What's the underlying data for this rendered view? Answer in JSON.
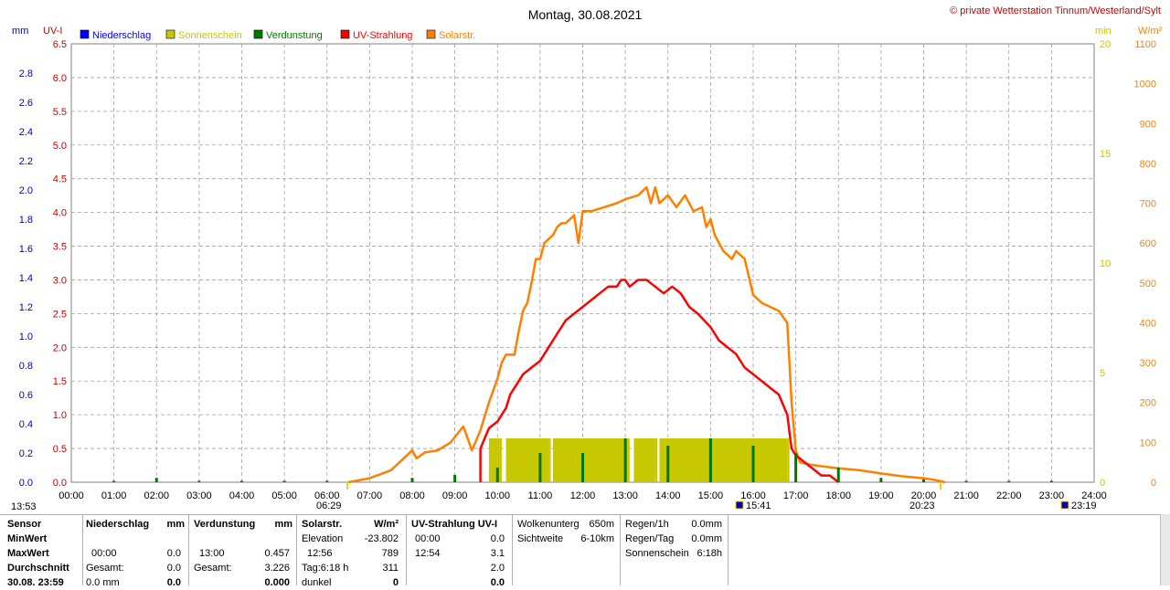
{
  "title": "Montag, 30.08.2021",
  "copyright": "© private Wetterstation Tinnum/Westerland/Sylt",
  "colors": {
    "niederschlag": "#0000ff",
    "sonnenschein": "#c8c800",
    "verdunstung": "#007800",
    "uv": "#ff0000",
    "solar": "#ff8000",
    "grid": "#a0a0a0"
  },
  "legend": [
    {
      "name": "Niederschlag",
      "color": "#0000ff"
    },
    {
      "name": "Sonnenschein",
      "color": "#c8c800"
    },
    {
      "name": "Verdunstung",
      "color": "#007800"
    },
    {
      "name": "UV-Strahlung",
      "color": "#ff0000"
    },
    {
      "name": "Solarstr.",
      "color": "#ff8000"
    }
  ],
  "axis_units": {
    "mm": "mm",
    "uv": "UV-I",
    "min": "min",
    "wm2": "W/m²"
  },
  "markers": {
    "left_time": "13:53",
    "sunrise": "06:29",
    "sunset": "20:23",
    "mark1": "15:41",
    "mark2": "23:19"
  },
  "chart_data": {
    "type": "line",
    "title": "Montag, 30.08.2021",
    "x_ticks": [
      "00:00",
      "01:00",
      "02:00",
      "03:00",
      "04:00",
      "05:00",
      "06:00",
      "07:00",
      "08:00",
      "09:00",
      "10:00",
      "11:00",
      "12:00",
      "13:00",
      "14:00",
      "15:00",
      "16:00",
      "17:00",
      "18:00",
      "19:00",
      "20:00",
      "21:00",
      "22:00",
      "23:00",
      "24:00"
    ],
    "axes": {
      "mm": {
        "range": [
          0,
          3.0
        ],
        "ticks": [
          "0.0",
          "0.2",
          "0.4",
          "0.6",
          "0.8",
          "1.0",
          "1.2",
          "1.4",
          "1.6",
          "1.8",
          "2.0",
          "2.2",
          "2.4",
          "2.6",
          "2.8"
        ]
      },
      "uv": {
        "range": [
          0,
          6.5
        ],
        "ticks": [
          "0.0",
          "0.5",
          "1.0",
          "1.5",
          "2.0",
          "2.5",
          "3.0",
          "3.5",
          "4.0",
          "4.5",
          "5.0",
          "5.5",
          "6.0",
          "6.5"
        ]
      },
      "min": {
        "range": [
          0,
          20
        ],
        "ticks": [
          "0",
          "5",
          "10",
          "15",
          "20"
        ]
      },
      "wm2": {
        "range": [
          0,
          1100
        ],
        "ticks": [
          "0",
          "100",
          "200",
          "300",
          "400",
          "500",
          "600",
          "700",
          "800",
          "900",
          "1000",
          "1100"
        ]
      }
    },
    "grid": true,
    "legend_position": "top-left",
    "series": [
      {
        "name": "Solarstr.",
        "axis": "wm2",
        "points": [
          [
            6.5,
            0
          ],
          [
            7.0,
            10
          ],
          [
            7.5,
            30
          ],
          [
            7.8,
            60
          ],
          [
            8.0,
            80
          ],
          [
            8.1,
            60
          ],
          [
            8.3,
            75
          ],
          [
            8.6,
            80
          ],
          [
            8.9,
            100
          ],
          [
            9.2,
            140
          ],
          [
            9.4,
            80
          ],
          [
            9.6,
            130
          ],
          [
            9.8,
            200
          ],
          [
            10.0,
            260
          ],
          [
            10.1,
            300
          ],
          [
            10.2,
            320
          ],
          [
            10.4,
            320
          ],
          [
            10.5,
            380
          ],
          [
            10.6,
            430
          ],
          [
            10.7,
            450
          ],
          [
            10.8,
            500
          ],
          [
            10.9,
            560
          ],
          [
            11.0,
            560
          ],
          [
            11.1,
            600
          ],
          [
            11.2,
            610
          ],
          [
            11.3,
            620
          ],
          [
            11.4,
            640
          ],
          [
            11.5,
            650
          ],
          [
            11.6,
            650
          ],
          [
            11.7,
            660
          ],
          [
            11.8,
            670
          ],
          [
            11.9,
            600
          ],
          [
            12.0,
            680
          ],
          [
            12.2,
            680
          ],
          [
            12.5,
            690
          ],
          [
            12.8,
            700
          ],
          [
            13.0,
            710
          ],
          [
            13.3,
            720
          ],
          [
            13.5,
            740
          ],
          [
            13.6,
            700
          ],
          [
            13.7,
            740
          ],
          [
            13.8,
            700
          ],
          [
            14.0,
            720
          ],
          [
            14.2,
            690
          ],
          [
            14.4,
            720
          ],
          [
            14.6,
            680
          ],
          [
            14.8,
            690
          ],
          [
            14.9,
            640
          ],
          [
            15.0,
            660
          ],
          [
            15.1,
            620
          ],
          [
            15.3,
            580
          ],
          [
            15.5,
            560
          ],
          [
            15.6,
            580
          ],
          [
            15.8,
            560
          ],
          [
            16.0,
            470
          ],
          [
            16.2,
            450
          ],
          [
            16.4,
            440
          ],
          [
            16.6,
            430
          ],
          [
            16.8,
            400
          ],
          [
            16.9,
            200
          ],
          [
            17.0,
            80
          ],
          [
            17.1,
            50
          ],
          [
            17.3,
            45
          ],
          [
            17.6,
            40
          ],
          [
            18.0,
            35
          ],
          [
            18.5,
            30
          ],
          [
            19.0,
            22
          ],
          [
            19.5,
            15
          ],
          [
            20.0,
            10
          ],
          [
            20.3,
            5
          ],
          [
            20.5,
            0
          ]
        ]
      },
      {
        "name": "UV-Strahlung",
        "axis": "uv",
        "points": [
          [
            9.6,
            0
          ],
          [
            9.6,
            0.5
          ],
          [
            9.8,
            0.8
          ],
          [
            10.0,
            0.9
          ],
          [
            10.1,
            1.0
          ],
          [
            10.2,
            1.1
          ],
          [
            10.3,
            1.3
          ],
          [
            10.4,
            1.4
          ],
          [
            10.5,
            1.5
          ],
          [
            10.6,
            1.6
          ],
          [
            10.8,
            1.7
          ],
          [
            11.0,
            1.8
          ],
          [
            11.2,
            2.0
          ],
          [
            11.4,
            2.2
          ],
          [
            11.6,
            2.4
          ],
          [
            11.8,
            2.5
          ],
          [
            12.0,
            2.6
          ],
          [
            12.2,
            2.7
          ],
          [
            12.4,
            2.8
          ],
          [
            12.6,
            2.9
          ],
          [
            12.8,
            2.9
          ],
          [
            12.9,
            3.0
          ],
          [
            13.0,
            3.0
          ],
          [
            13.1,
            2.9
          ],
          [
            13.3,
            3.0
          ],
          [
            13.5,
            3.0
          ],
          [
            13.7,
            2.9
          ],
          [
            13.9,
            2.8
          ],
          [
            14.1,
            2.9
          ],
          [
            14.3,
            2.8
          ],
          [
            14.5,
            2.6
          ],
          [
            14.7,
            2.5
          ],
          [
            15.0,
            2.3
          ],
          [
            15.2,
            2.1
          ],
          [
            15.4,
            2.0
          ],
          [
            15.6,
            1.9
          ],
          [
            15.8,
            1.7
          ],
          [
            16.0,
            1.6
          ],
          [
            16.2,
            1.5
          ],
          [
            16.4,
            1.4
          ],
          [
            16.6,
            1.3
          ],
          [
            16.8,
            1.0
          ],
          [
            16.9,
            0.5
          ],
          [
            17.0,
            0.4
          ],
          [
            17.2,
            0.3
          ],
          [
            17.4,
            0.2
          ],
          [
            17.6,
            0.1
          ],
          [
            17.8,
            0.1
          ],
          [
            18.0,
            0.0
          ]
        ]
      },
      {
        "name": "Sonnenschein",
        "axis": "min",
        "points": [
          [
            9.8,
            2
          ],
          [
            10.0,
            2
          ],
          [
            10.1,
            0
          ],
          [
            10.2,
            2
          ],
          [
            11.2,
            2
          ],
          [
            11.25,
            0
          ],
          [
            11.3,
            2
          ],
          [
            13.0,
            2
          ],
          [
            13.1,
            0
          ],
          [
            13.2,
            2
          ],
          [
            13.7,
            2
          ],
          [
            13.75,
            0
          ],
          [
            13.8,
            2
          ],
          [
            16.8,
            2
          ],
          [
            16.85,
            0
          ]
        ]
      },
      {
        "name": "Verdunstung",
        "axis": "mm",
        "points": [
          [
            1.0,
            0.01
          ],
          [
            2.0,
            0.03
          ],
          [
            3.0,
            0.01
          ],
          [
            4.0,
            0.01
          ],
          [
            5.0,
            0.01
          ],
          [
            6.0,
            0.01
          ],
          [
            8.0,
            0.03
          ],
          [
            9.0,
            0.05
          ],
          [
            10.0,
            0.1
          ],
          [
            11.0,
            0.2
          ],
          [
            12.0,
            0.2
          ],
          [
            13.0,
            0.3
          ],
          [
            14.0,
            0.25
          ],
          [
            15.0,
            0.3
          ],
          [
            16.0,
            0.25
          ],
          [
            17.0,
            0.2
          ],
          [
            18.0,
            0.1
          ],
          [
            19.0,
            0.03
          ],
          [
            20.0,
            0.02
          ],
          [
            21.0,
            0.01
          ],
          [
            22.0,
            0.01
          ],
          [
            23.0,
            0.01
          ]
        ]
      }
    ]
  },
  "stats": {
    "col1": {
      "sensor": "Sensor",
      "min": "MinWert",
      "max": "MaxWert",
      "avg": "Durchschnitt",
      "date": "30.08. 23:59"
    },
    "niederschlag": {
      "header": "Niederschlag",
      "unit": "mm",
      "max_time": "00:00",
      "max_val": "0.0",
      "gesamt_label": "Gesamt:",
      "gesamt_val": "0.0",
      "last_left": "0.0 mm",
      "last_val": "0.0"
    },
    "verdunstung": {
      "header": "Verdunstung",
      "unit": "mm",
      "max_time": "13:00",
      "max_val": "0.457",
      "gesamt_label": "Gesamt:",
      "gesamt_val": "3.226",
      "last_val": "0.000"
    },
    "solar": {
      "header": "Solarstr.",
      "unit": "W/m²",
      "elev_label": "Elevation",
      "elev_val": "-23.802",
      "max_time": "12:56",
      "max_val": "789",
      "tag_label": "Tag:6:18 h",
      "tag_val": "311",
      "dunkel_label": "dunkel",
      "dunkel_val": "0"
    },
    "uv": {
      "header": "UV-Strahlung UV-I",
      "min_time": "00:00",
      "min_val": "0.0",
      "max_time": "12:54",
      "max_val": "3.1",
      "avg_val": "2.0",
      "last_val": "0.0"
    },
    "wolken": {
      "l1": "Wolkenunterg",
      "v1": "650m",
      "l2": "Sichtweite",
      "v2": "6-10km"
    },
    "regen": {
      "l1": "Regen/1h",
      "v1": "0.0mm",
      "l2": "Regen/Tag",
      "v2": "0.0mm",
      "l3": "Sonnenschein",
      "v3": "6:18h"
    }
  }
}
